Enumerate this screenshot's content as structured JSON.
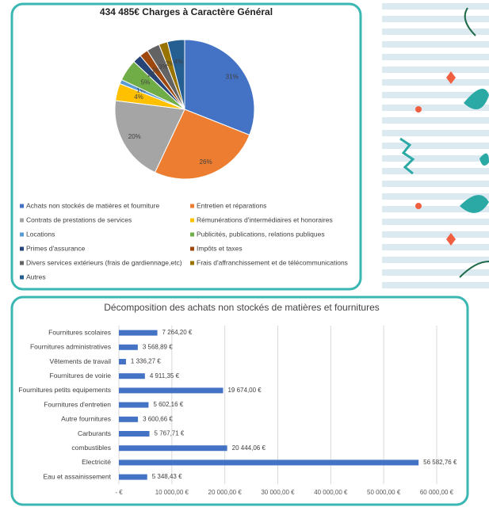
{
  "chart_data": [
    {
      "type": "pie",
      "title": "434 485€ Charges à Caractère Général",
      "categories": [
        "Achats non stockés de matières et fourniture",
        "Entretien et réparations",
        "Contrats de prestations de services",
        "Rémunérations d'intermédiaires et honoraires",
        "Locations",
        "Publicités, publications, relations publiques",
        "Primes d'assurance",
        "Impôts et taxes",
        "Divers services extérieurs (frais de gardiennage,etc)",
        "Frais d'affranchissement et de télécommunications",
        "Autres"
      ],
      "values": [
        31,
        26,
        20,
        4,
        1,
        5,
        2,
        2,
        3,
        2,
        4
      ],
      "value_labels": [
        "31%",
        "26%",
        "20%",
        "4%",
        "1%",
        "5%",
        "2%",
        "2%",
        "3%",
        "2%",
        "4%"
      ],
      "colors": [
        "#4472c4",
        "#ed7d31",
        "#a5a5a5",
        "#ffc000",
        "#5b9bd5",
        "#70ad47",
        "#264478",
        "#9e480e",
        "#636363",
        "#997300",
        "#255e91"
      ]
    },
    {
      "type": "hbar",
      "title": "Décomposition des achats non stockés de matières et fournitures",
      "categories": [
        "Fournitures scolaires",
        "Fournitures administratives",
        "Vêtements de travail",
        "Fournitures de voirie",
        "Fournitures petits equipements",
        "Fournitures d'entretien",
        "Autre fournitures",
        "Carburants",
        "combustibles",
        "Electricité",
        "Eau et assainissement"
      ],
      "values": [
        7264.2,
        3568.89,
        1336.27,
        4911.35,
        19674.0,
        5602.16,
        3600.66,
        5767.71,
        20444.06,
        56582.76,
        5348.43
      ],
      "value_labels": [
        "7 264,20 €",
        "3 568,89 €",
        "1 336,27 €",
        "4 911,35 €",
        "19 674,00 €",
        "5 602,16 €",
        "3 600,66 €",
        "5 767,71 €",
        "20 444,06 €",
        "56 582,76 €",
        "5 348,43 €"
      ],
      "color": "#4472c4",
      "xlim": [
        0,
        60000
      ],
      "xticks": [
        {
          "value": 0,
          "label": "-   €"
        },
        {
          "value": 10000,
          "label": "10 000,00 €"
        },
        {
          "value": 20000,
          "label": "20 000,00 €"
        },
        {
          "value": 30000,
          "label": "30 000,00 €"
        },
        {
          "value": 40000,
          "label": "40 000,00 €"
        },
        {
          "value": 50000,
          "label": "50 000,00 €"
        },
        {
          "value": 60000,
          "label": "60 000,00 €"
        }
      ],
      "grid": true
    }
  ]
}
